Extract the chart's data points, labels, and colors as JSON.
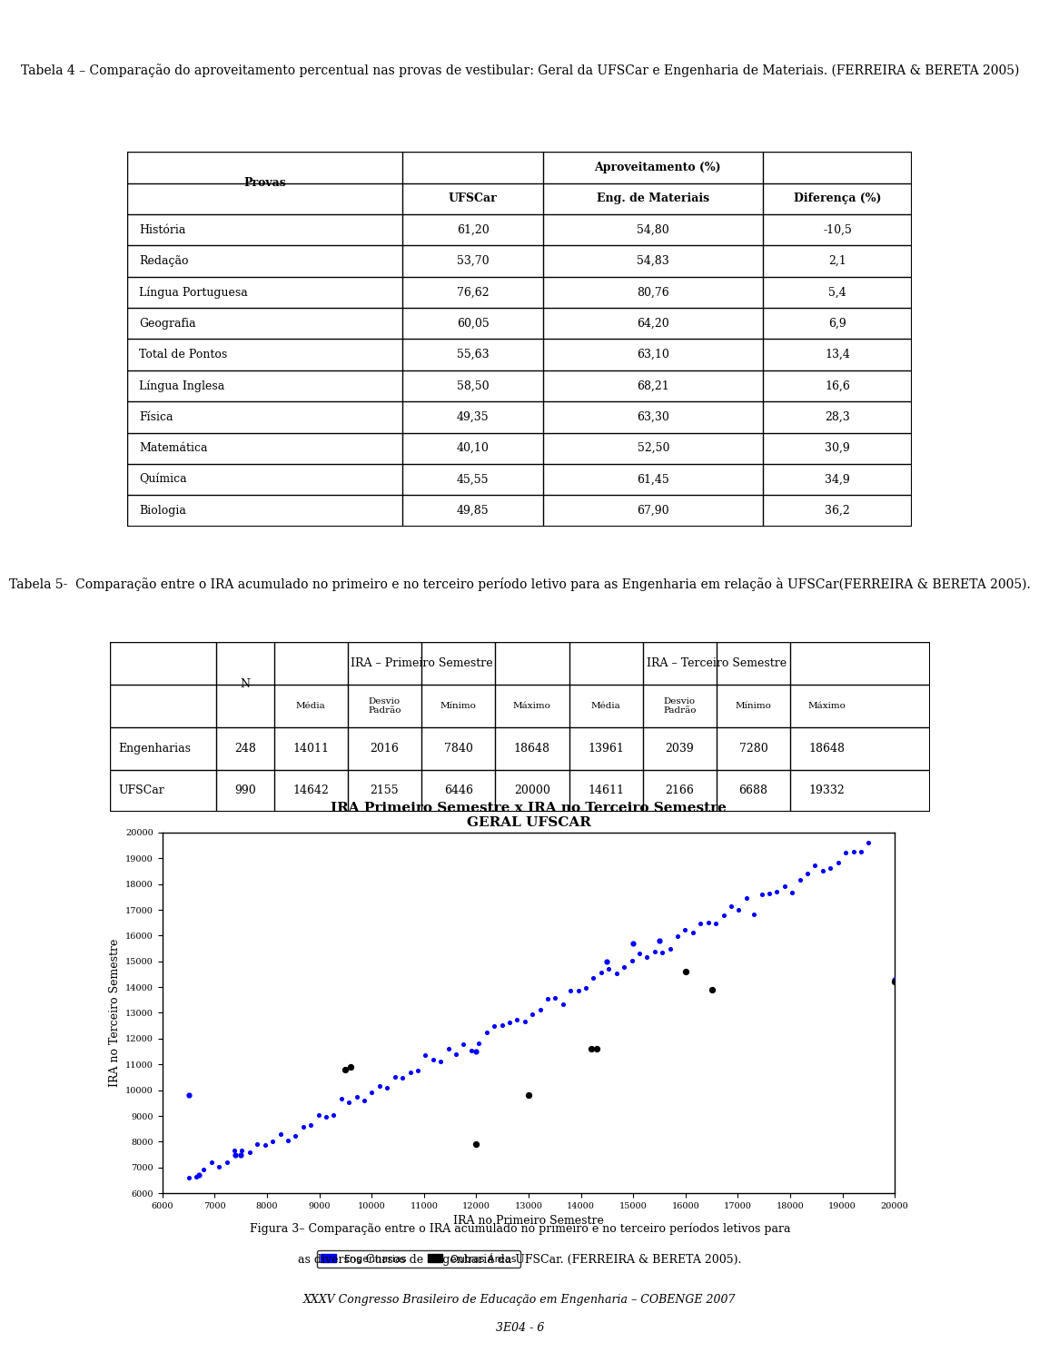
{
  "title1": "Tabela 4 – Comparação do aproveitamento percentual nas provas de vestibular: Geral da UFSCar e Engenharia de Materiais. (FERREIRA & BERETA 2005)",
  "table1_data": [
    [
      "História",
      "61,20",
      "54,80",
      "-10,5"
    ],
    [
      "Redação",
      "53,70",
      "54,83",
      "2,1"
    ],
    [
      "Língua Portuguesa",
      "76,62",
      "80,76",
      "5,4"
    ],
    [
      "Geografia",
      "60,05",
      "64,20",
      "6,9"
    ],
    [
      "Total de Pontos",
      "55,63",
      "63,10",
      "13,4"
    ],
    [
      "Língua Inglesa",
      "58,50",
      "68,21",
      "16,6"
    ],
    [
      "Física",
      "49,35",
      "63,30",
      "28,3"
    ],
    [
      "Matemática",
      "40,10",
      "52,50",
      "30,9"
    ],
    [
      "Química",
      "45,55",
      "61,45",
      "34,9"
    ],
    [
      "Biologia",
      "49,85",
      "67,90",
      "36,2"
    ]
  ],
  "title2": "Tabela 5-  Comparação entre o IRA acumulado no primeiro e no terceiro período letivo para as Engenharia em relação à UFSCar(FERREIRA & BERETA 2005).",
  "table2_data": [
    [
      "Engenharias",
      "248",
      "14011",
      "2016",
      "7840",
      "18648",
      "13961",
      "2039",
      "7280",
      "18648"
    ],
    [
      "UFSCar",
      "990",
      "14642",
      "2155",
      "6446",
      "20000",
      "14611",
      "2166",
      "6688",
      "19332"
    ]
  ],
  "chart_title": "IRA Primeiro Semestre x IRA no Terceiro Semestre",
  "chart_subtitle": "GERAL UFSCAR",
  "chart_xlabel": "IRA no Primeiro Semestre",
  "chart_ylabel": "IRA no Terceiro Semestre",
  "chart_xlim": [
    6000,
    20000
  ],
  "chart_ylim": [
    6000,
    20000
  ],
  "chart_xticks": [
    6000,
    7000,
    8000,
    9000,
    10000,
    11000,
    12000,
    13000,
    14000,
    15000,
    16000,
    17000,
    18000,
    19000,
    20000
  ],
  "chart_yticks": [
    6000,
    7000,
    8000,
    9000,
    10000,
    11000,
    12000,
    13000,
    14000,
    15000,
    16000,
    17000,
    18000,
    19000,
    20000
  ],
  "black_scatter_x": [
    9500,
    9600,
    12000,
    13000,
    14200,
    14300,
    16000,
    16500,
    20000
  ],
  "black_scatter_y": [
    10800,
    10900,
    7900,
    9800,
    11600,
    11600,
    14600,
    13900,
    14200
  ],
  "legend_blue": "Engenharias",
  "legend_black": "Outras Áreas",
  "figure3_caption_line1": "Figura 3– Comparação entre o IRA acumulado no primeiro e no terceiro períodos letivos para",
  "figure3_caption_line2": "as diversos Cursos de Engenharia da UFSCar. (FERREIRA & BERETA 2005).",
  "footer_line1": "XXXV Congresso Brasileiro de Educação em Engenharia – COBENGE 2007",
  "footer_line2": "3E04 - 6",
  "bg_color": "#ffffff"
}
